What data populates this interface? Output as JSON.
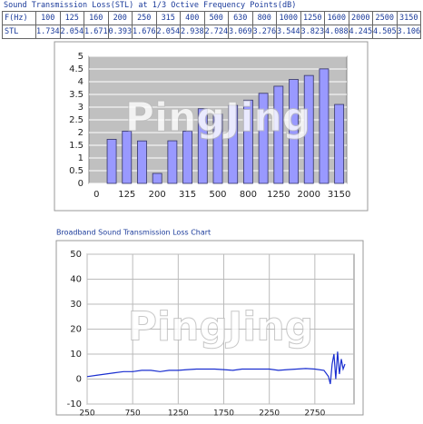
{
  "table": {
    "title": "Sound Transmission Loss(STL) at 1/3 Octive Frequency Points(dB)",
    "header": [
      "F(Hz)",
      100,
      125,
      160,
      200,
      250,
      315,
      400,
      500,
      630,
      800,
      1000,
      1250,
      1600,
      2000,
      2500,
      3150
    ],
    "rows": [
      [
        "STL",
        1.734,
        2.054,
        1.671,
        0.393,
        1.676,
        2.054,
        2.938,
        2.724,
        3.069,
        3.276,
        3.544,
        3.823,
        4.088,
        4.245,
        4.505,
        3.106
      ]
    ]
  },
  "chart_data": [
    {
      "type": "bar",
      "watermark": "PingJing",
      "categories": [
        "0",
        null,
        "125",
        null,
        "200",
        null,
        "315",
        null,
        "500",
        null,
        "800",
        null,
        "1250",
        null,
        "2000",
        null,
        "3150"
      ],
      "values": [
        null,
        1.734,
        2.054,
        1.671,
        0.393,
        1.676,
        2.054,
        2.938,
        2.724,
        3.069,
        3.276,
        3.544,
        3.823,
        4.088,
        4.245,
        4.505,
        3.106
      ],
      "color": "#9999ff",
      "ylim": [
        0,
        5
      ],
      "yticks": [
        0,
        0.5,
        1,
        1.5,
        2,
        2.5,
        3,
        3.5,
        4,
        4.5,
        5
      ],
      "grid": true
    },
    {
      "type": "line",
      "title": "Broadband Sound Transmission Loss Chart",
      "watermark": "PingJing",
      "x": [
        250,
        350,
        450,
        550,
        650,
        750,
        850,
        950,
        1050,
        1150,
        1250,
        1350,
        1450,
        1550,
        1650,
        1750,
        1850,
        1950,
        2050,
        2150,
        2250,
        2350,
        2450,
        2550,
        2650,
        2750,
        2850,
        2900,
        2920,
        2940,
        2960,
        2980,
        3000,
        3020,
        3040,
        3060,
        3080
      ],
      "values": [
        1,
        1.5,
        2,
        2.5,
        3,
        3,
        3.5,
        3.5,
        3,
        3.5,
        3.5,
        3.8,
        4,
        4,
        4,
        3.8,
        3.5,
        4,
        4,
        4,
        4,
        3.5,
        3.8,
        4,
        4.2,
        4,
        3.5,
        1,
        -2,
        6,
        10,
        0,
        11,
        2,
        8,
        4,
        6
      ],
      "color": "#1a2fd0",
      "xlim": [
        250,
        3180
      ],
      "xticks": [
        250,
        750,
        1250,
        1750,
        2250,
        2750
      ],
      "ylim": [
        -10,
        50
      ],
      "yticks": [
        -10,
        0,
        10,
        20,
        30,
        40,
        50
      ],
      "grid": true
    }
  ]
}
